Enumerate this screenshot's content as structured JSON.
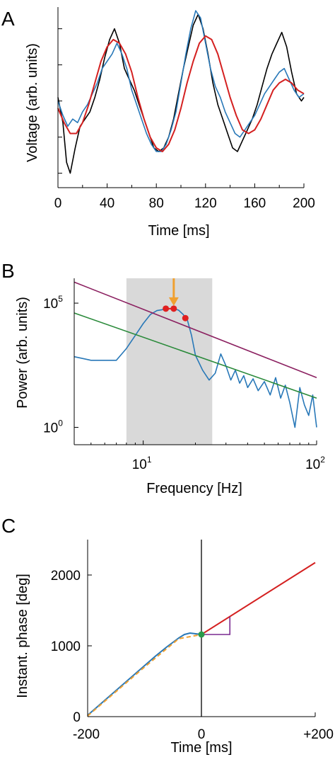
{
  "chart_data": [
    {
      "panel": "A",
      "type": "line",
      "xlabel": "Time [ms]",
      "ylabel": "Voltage (arb. units)",
      "xlim": [
        0,
        200
      ],
      "xticks": [
        0,
        40,
        80,
        120,
        160,
        200
      ],
      "yticks_unlabeled": [
        -2,
        -1,
        0,
        1,
        2
      ],
      "ylim": [
        -2.4,
        2.6
      ],
      "series": [
        {
          "color": "#000000",
          "x": [
            0,
            4,
            7,
            10,
            14,
            18,
            22,
            26,
            30,
            34,
            38,
            42,
            46,
            50,
            54,
            58,
            62,
            66,
            70,
            74,
            78,
            82,
            86,
            90,
            94,
            98,
            102,
            106,
            110,
            114,
            118,
            122,
            126,
            130,
            134,
            138,
            142,
            146,
            150,
            154,
            158,
            162,
            166,
            170,
            174,
            178,
            182,
            186,
            190,
            194,
            198,
            200
          ],
          "values": [
            0.1,
            -0.6,
            -1.7,
            -2.0,
            -1.3,
            -0.7,
            -0.5,
            -0.3,
            0.1,
            0.6,
            1.2,
            1.7,
            2.0,
            1.6,
            0.9,
            0.6,
            0.3,
            -0.1,
            -0.5,
            -0.9,
            -1.3,
            -1.4,
            -1.3,
            -1.0,
            -0.5,
            0.2,
            0.9,
            1.5,
            2.1,
            2.4,
            2.0,
            1.3,
            0.5,
            -0.1,
            -0.5,
            -0.9,
            -1.3,
            -1.4,
            -1.1,
            -0.8,
            -0.5,
            -0.1,
            0.4,
            0.9,
            1.3,
            1.6,
            1.9,
            1.5,
            0.8,
            0.2,
            0.0,
            0.1
          ]
        },
        {
          "color": "#2878b8",
          "x": [
            0,
            4,
            8,
            12,
            16,
            20,
            24,
            28,
            32,
            36,
            40,
            44,
            48,
            52,
            56,
            60,
            64,
            68,
            72,
            76,
            80,
            84,
            88,
            92,
            96,
            100,
            104,
            108,
            112,
            116,
            120,
            124,
            128,
            132,
            136,
            140,
            144,
            148,
            152,
            156,
            160,
            164,
            168,
            172,
            176,
            180,
            184,
            188,
            192,
            196,
            200
          ],
          "values": [
            0.0,
            -0.4,
            -0.7,
            -0.5,
            -0.6,
            -0.3,
            -0.1,
            0.2,
            0.5,
            0.9,
            1.1,
            1.3,
            1.6,
            1.3,
            0.9,
            0.3,
            -0.1,
            -0.5,
            -0.9,
            -1.2,
            -1.4,
            -1.4,
            -1.2,
            -0.8,
            -0.3,
            0.5,
            1.3,
            2.0,
            2.5,
            2.3,
            1.6,
            0.9,
            0.4,
            0.1,
            -0.3,
            -0.6,
            -0.9,
            -1.0,
            -0.8,
            -0.6,
            -0.4,
            -0.1,
            0.2,
            0.4,
            0.6,
            0.8,
            0.9,
            0.6,
            0.3,
            0.1,
            0.2
          ]
        },
        {
          "color": "#d42020",
          "x": [
            0,
            5,
            10,
            15,
            20,
            25,
            30,
            35,
            40,
            45,
            50,
            55,
            60,
            65,
            70,
            75,
            80,
            85,
            90,
            95,
            100,
            105,
            110,
            115,
            120,
            125,
            130,
            135,
            140,
            145,
            150,
            155,
            160,
            165,
            170,
            175,
            180,
            185,
            190,
            195,
            200
          ],
          "values": [
            -0.2,
            -0.6,
            -0.9,
            -0.9,
            -0.6,
            -0.1,
            0.5,
            1.1,
            1.5,
            1.7,
            1.6,
            1.3,
            0.8,
            0.1,
            -0.5,
            -1.0,
            -1.3,
            -1.4,
            -1.2,
            -0.8,
            -0.2,
            0.5,
            1.1,
            1.6,
            1.8,
            1.7,
            1.3,
            0.7,
            0.1,
            -0.4,
            -0.8,
            -0.9,
            -0.8,
            -0.5,
            -0.1,
            0.3,
            0.5,
            0.6,
            0.5,
            0.3,
            0.2
          ]
        }
      ]
    },
    {
      "panel": "B",
      "type": "line",
      "xscale": "log",
      "yscale": "log",
      "xlabel": "Frequency [Hz]",
      "ylabel": "Power (arb. units)",
      "xlim": [
        4,
        100
      ],
      "ylim": [
        0.2,
        1000000
      ],
      "xtick_labels": [
        {
          "value": 10,
          "base": "10",
          "exp": "1"
        },
        {
          "value": 100,
          "base": "10",
          "exp": "2"
        }
      ],
      "ytick_labels": [
        {
          "value": 1,
          "base": "10",
          "exp": "0"
        },
        {
          "value": 100000,
          "base": "10",
          "exp": "5"
        }
      ],
      "shaded_band": {
        "from": 8,
        "to": 25,
        "color": "#d9d9d9"
      },
      "series": [
        {
          "color": "#2878b8",
          "x": [
            4,
            5,
            6,
            7,
            8,
            9,
            10,
            11,
            12,
            13,
            14,
            15,
            16,
            17,
            18,
            19,
            20,
            22,
            24,
            26,
            28,
            30,
            32,
            34,
            36,
            38,
            40,
            43,
            46,
            50,
            54,
            58,
            62,
            66,
            70,
            75,
            80,
            85,
            90,
            95,
            100
          ],
          "values": [
            700,
            500,
            500,
            500,
            1500,
            5000,
            15000,
            35000,
            50000,
            55000,
            60000,
            60000,
            52000,
            35000,
            20000,
            5000,
            800,
            200,
            80,
            150,
            900,
            300,
            80,
            200,
            60,
            120,
            40,
            90,
            30,
            70,
            20,
            100,
            15,
            50,
            10,
            1,
            40,
            8,
            3,
            20,
            1
          ]
        },
        {
          "color": "#8b2060",
          "x": [
            4,
            100
          ],
          "values": [
            700000,
            100
          ]
        },
        {
          "color": "#2a8a3a",
          "x": [
            4,
            100
          ],
          "values": [
            40000,
            15
          ]
        }
      ],
      "markers": {
        "color": "#e02020",
        "x": [
          13.5,
          15,
          17.5
        ],
        "values": [
          60000,
          60000,
          25000
        ]
      },
      "arrow": {
        "color": "#f0a030",
        "x": 15
      }
    },
    {
      "panel": "C",
      "type": "line",
      "xlabel": "Time [ms]",
      "ylabel": "Instant. phase [deg]",
      "xlim": [
        -200,
        200
      ],
      "ylim": [
        0,
        2500
      ],
      "xtick_labels": [
        "-200",
        "0",
        "+200"
      ],
      "xtick_values": [
        -200,
        0,
        200
      ],
      "ytick_labels": [
        "0",
        "1000",
        "2000"
      ],
      "ytick_values": [
        0,
        1000,
        2000
      ],
      "series": [
        {
          "color": "#2878b8",
          "x": [
            -200,
            -180,
            -160,
            -140,
            -120,
            -100,
            -80,
            -60,
            -50,
            -40,
            -30,
            -20,
            -10,
            0
          ],
          "values": [
            20,
            160,
            300,
            440,
            580,
            720,
            860,
            990,
            1050,
            1110,
            1160,
            1180,
            1170,
            1160
          ]
        },
        {
          "color": "#f0a030",
          "dashed": true,
          "x": [
            -200,
            -100,
            -40,
            0
          ],
          "values": [
            10,
            700,
            1100,
            1160
          ]
        },
        {
          "color": "#d42020",
          "x": [
            0,
            200
          ],
          "values": [
            1160,
            2175
          ]
        }
      ],
      "vline_x": 0,
      "point": {
        "color": "#2a9a4a",
        "x": 0,
        "y": 1160
      },
      "slope_triangle": {
        "color": "#7a2a90",
        "x": [
          0,
          50
        ],
        "y": [
          1160,
          1410
        ]
      }
    }
  ]
}
